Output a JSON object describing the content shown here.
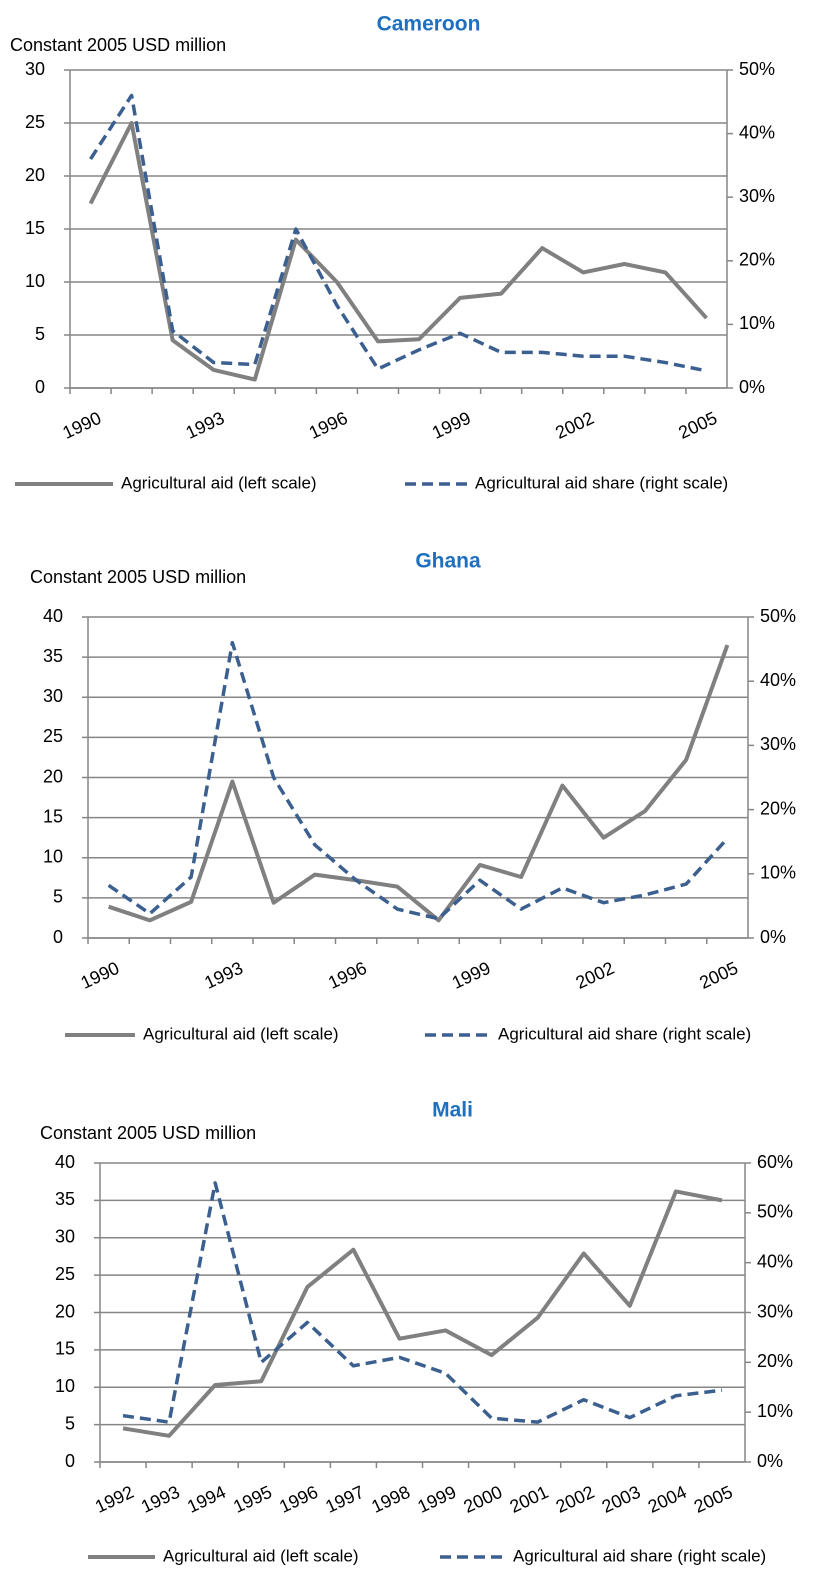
{
  "chart_data": [
    {
      "type": "line",
      "title": "Cameroon",
      "y_label": "Constant 2005 USD million",
      "categories": [
        "1990",
        null,
        null,
        "1993",
        null,
        null,
        "1996",
        null,
        null,
        "1999",
        null,
        null,
        "2002",
        null,
        null,
        "2005"
      ],
      "series": [
        {
          "name": "Agricultural aid (left scale)",
          "color": "#808080",
          "dashed": false,
          "axis": "y",
          "values": [
            17.4,
            25,
            4.5,
            1.7,
            0.8,
            14,
            10,
            4.4,
            4.6,
            8.5,
            8.9,
            13.2,
            10.9,
            11.7,
            10.9,
            6.6
          ]
        },
        {
          "name": "Agricultural aid share (right scale)",
          "color": "#3b5f8f",
          "dashed": true,
          "axis": "y2",
          "values": [
            36,
            46,
            9,
            4,
            3.7,
            25,
            13,
            3,
            6,
            8.6,
            5.6,
            5.6,
            5,
            5,
            4,
            2.7
          ]
        }
      ],
      "ylim": [
        0,
        30
      ],
      "yticks": [
        0,
        5,
        10,
        15,
        20,
        25,
        30
      ],
      "y2lim": [
        0,
        50
      ],
      "y2ticks": [
        {
          "value": 0,
          "label": "0%"
        },
        {
          "value": 10,
          "label": "10%"
        },
        {
          "value": 20,
          "label": "20%"
        },
        {
          "value": 30,
          "label": "30%"
        },
        {
          "value": 40,
          "label": "40%"
        },
        {
          "value": 50,
          "label": "50%"
        }
      ],
      "grid": true
    },
    {
      "type": "line",
      "title": "Ghana",
      "y_label": "Constant 2005 USD million",
      "categories": [
        "1990",
        null,
        null,
        "1993",
        null,
        null,
        "1996",
        null,
        null,
        "1999",
        null,
        null,
        "2002",
        null,
        null,
        "2005"
      ],
      "series": [
        {
          "name": "Agricultural aid (left scale)",
          "color": "#808080",
          "dashed": false,
          "axis": "y",
          "values": [
            3.9,
            2.2,
            4.5,
            19.5,
            4.4,
            7.9,
            7.2,
            6.4,
            2.2,
            9.1,
            7.6,
            19,
            12.5,
            15.8,
            22.2,
            36.5
          ]
        },
        {
          "name": "Agricultural aid share (right scale)",
          "color": "#3b5f8f",
          "dashed": true,
          "axis": "y2",
          "values": [
            8.2,
            3.8,
            9.5,
            46,
            25,
            14.5,
            9,
            4.5,
            3,
            9,
            4.5,
            7.8,
            5.5,
            6.7,
            8.4,
            15.5
          ]
        }
      ],
      "ylim": [
        0,
        40
      ],
      "yticks": [
        0,
        5,
        10,
        15,
        20,
        25,
        30,
        35,
        40
      ],
      "y2lim": [
        0,
        50
      ],
      "y2ticks": [
        {
          "value": 0,
          "label": "0%"
        },
        {
          "value": 10,
          "label": "10%"
        },
        {
          "value": 20,
          "label": "20%"
        },
        {
          "value": 30,
          "label": "30%"
        },
        {
          "value": 40,
          "label": "40%"
        },
        {
          "value": 50,
          "label": "50%"
        }
      ],
      "grid": true
    },
    {
      "type": "line",
      "title": "Mali",
      "y_label": "Constant 2005 USD million",
      "categories": [
        "1992",
        "1993",
        "1994",
        "1995",
        "1996",
        "1997",
        "1998",
        "1999",
        "2000",
        "2001",
        "2002",
        "2003",
        "2004",
        "2005"
      ],
      "series": [
        {
          "name": "Agricultural aid (left scale)",
          "color": "#808080",
          "dashed": false,
          "axis": "y",
          "values": [
            4.5,
            3.5,
            10.3,
            10.8,
            23.4,
            28.4,
            16.5,
            17.6,
            14.3,
            19.3,
            27.9,
            20.9,
            36.2,
            35
          ]
        },
        {
          "name": "Agricultural aid share (right scale)",
          "color": "#3b5f8f",
          "dashed": true,
          "axis": "y2",
          "values": [
            9.3,
            8,
            56,
            20,
            28,
            19.3,
            21,
            17.8,
            8.8,
            8,
            12.5,
            8.9,
            13.3,
            14.4
          ]
        }
      ],
      "ylim": [
        0,
        40
      ],
      "yticks": [
        0,
        5,
        10,
        15,
        20,
        25,
        30,
        35,
        40
      ],
      "y2lim": [
        0,
        60
      ],
      "y2ticks": [
        {
          "value": 0,
          "label": "0%"
        },
        {
          "value": 10,
          "label": "10%"
        },
        {
          "value": 20,
          "label": "20%"
        },
        {
          "value": 30,
          "label": "30%"
        },
        {
          "value": 40,
          "label": "40%"
        },
        {
          "value": 50,
          "label": "50%"
        },
        {
          "value": 60,
          "label": "60%"
        }
      ],
      "grid": true
    }
  ]
}
